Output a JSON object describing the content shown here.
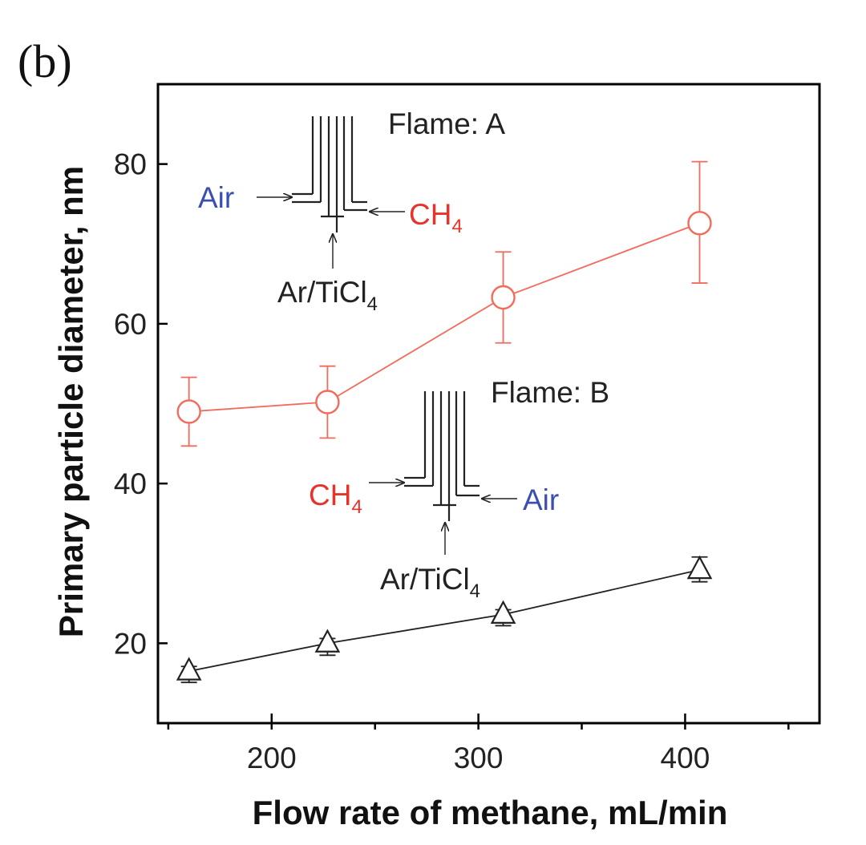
{
  "chart_data": {
    "type": "line",
    "panel_label": "(b)",
    "xlabel": "Flow rate of methane, mL/min",
    "ylabel": "Primary particle diameter, nm",
    "xlim": [
      145,
      465
    ],
    "ylim": [
      10,
      90
    ],
    "x_ticks": [
      200,
      300,
      400
    ],
    "x_tick_labels": [
      "200",
      "300",
      "400"
    ],
    "x_minor_ticks": [
      150,
      250,
      350,
      450
    ],
    "y_ticks": [
      20,
      40,
      60,
      80
    ],
    "y_tick_labels": [
      "20",
      "40",
      "60",
      "80"
    ],
    "grid": false,
    "series": [
      {
        "marker": "circle",
        "color": "#f26b5b",
        "x": [
          160,
          227,
          312,
          407
        ],
        "y": [
          49,
          50.2,
          63.3,
          72.6
        ],
        "err_low": [
          4.3,
          4.5,
          5.7,
          7.5
        ],
        "err_high": [
          4.3,
          4.5,
          5.7,
          7.7
        ]
      },
      {
        "marker": "triangle",
        "color": "#222222",
        "x": [
          160,
          227,
          312,
          407
        ],
        "y": [
          16.5,
          20,
          23.6,
          29.2
        ],
        "err_low": [
          1.4,
          1.5,
          1.4,
          1.5
        ],
        "err_high": [
          0.6,
          0.6,
          0.6,
          1.6
        ]
      }
    ],
    "annotations": {
      "flame_a": {
        "title": "Flame: A",
        "left_gas": "Air",
        "right_gas_main": "CH",
        "right_gas_sub": "4",
        "bottom_gas_main": "Ar/TiCl",
        "bottom_gas_sub": "4",
        "left_color": "#3a4fb0",
        "right_color": "#e8322a"
      },
      "flame_b": {
        "title": "Flame: B",
        "left_gas_main": "CH",
        "left_gas_sub": "4",
        "right_gas": "Air",
        "bottom_gas_main": "Ar/TiCl",
        "bottom_gas_sub": "4",
        "left_color": "#e8322a",
        "right_color": "#3a4fb0"
      }
    }
  }
}
